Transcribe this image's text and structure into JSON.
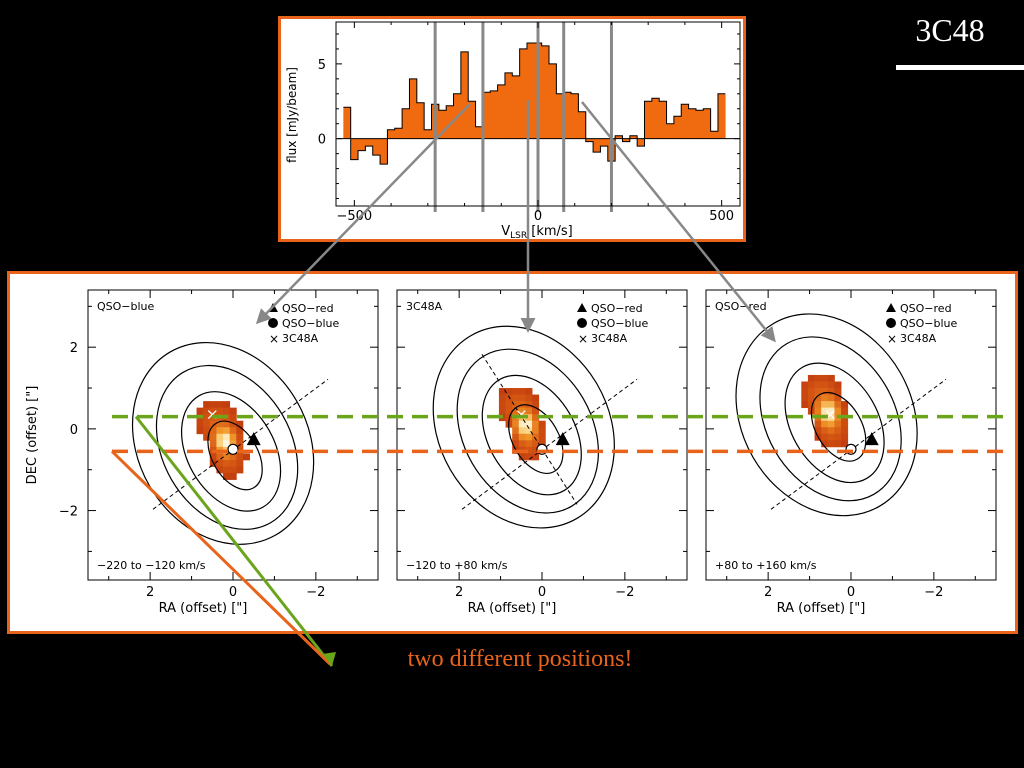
{
  "slide": {
    "title": "3C48",
    "caption": "two different positions!"
  },
  "colors": {
    "accent_orange": "#e8641b",
    "spectrum_fill": "#f06a10",
    "guide_gray": "#888888",
    "green_line": "#6aa51c",
    "orange_line": "#e8641b",
    "background": "#000000"
  },
  "chart_data": [
    {
      "type": "bar",
      "style": "step-histogram",
      "xlabel_main": "V",
      "xlabel_sub": "LSR",
      "xlabel_unit": "[km/s]",
      "ylabel": "flux  [mJy/beam]",
      "xlim": [
        -550,
        550
      ],
      "ylim": [
        -4.5,
        7.8
      ],
      "xticks": [
        -500,
        0,
        500
      ],
      "yticks": [
        0,
        5
      ],
      "channel_width": 20,
      "x": [
        -520,
        -500,
        -480,
        -460,
        -440,
        -420,
        -400,
        -380,
        -360,
        -340,
        -320,
        -300,
        -280,
        -260,
        -240,
        -220,
        -200,
        -180,
        -160,
        -140,
        -120,
        -100,
        -80,
        -60,
        -40,
        -20,
        0,
        20,
        40,
        60,
        80,
        100,
        120,
        140,
        160,
        180,
        200,
        220,
        240,
        260,
        280,
        300,
        320,
        340,
        360,
        380,
        400,
        420,
        440,
        460,
        480,
        500
      ],
      "values": [
        2.1,
        -1.4,
        -0.8,
        -0.5,
        -1.1,
        -1.7,
        0.6,
        0.7,
        2.0,
        4.0,
        2.4,
        0.6,
        2.3,
        1.9,
        2.2,
        3.0,
        5.8,
        2.5,
        0.8,
        3.1,
        3.2,
        3.6,
        4.4,
        4.2,
        6.0,
        6.4,
        6.4,
        6.2,
        5.0,
        3.0,
        3.1,
        3.0,
        1.8,
        -0.2,
        -0.9,
        -0.5,
        -1.5,
        0.2,
        -0.2,
        0.2,
        -0.5,
        2.5,
        2.7,
        2.5,
        1.0,
        1.5,
        2.3,
        2.0,
        1.9,
        2.0,
        0.5,
        3.0
      ],
      "velocity_guides": [
        -280,
        -150,
        0,
        70,
        200
      ]
    },
    {
      "type": "heatmap",
      "panel_label": "QSO−blue",
      "velocity_range": "−220 to −120 km/s",
      "xlabel": "RA  (offset) [\"]",
      "ylabel": "DEC  (offset) [\"]",
      "xlim": [
        3.5,
        -3.5
      ],
      "ylim": [
        -3.7,
        3.4
      ],
      "xticks": [
        2,
        0,
        -2
      ],
      "yticks": [
        2,
        0,
        -2
      ],
      "legend": [
        "QSO−red",
        "QSO−blue",
        "3C48A"
      ],
      "markers": {
        "qso_red": [
          -0.5,
          -0.25
        ],
        "qso_blue": [
          0.0,
          -0.5
        ],
        "3c48a": [
          0.5,
          0.35
        ]
      },
      "emission_peak": [
        0.2,
        -0.3
      ]
    },
    {
      "type": "heatmap",
      "panel_label": "3C48A",
      "velocity_range": "−120 to +80 km/s",
      "xlabel": "RA  (offset) [\"]",
      "xlim": [
        3.5,
        -3.5
      ],
      "ylim": [
        -3.7,
        3.4
      ],
      "xticks": [
        2,
        0,
        -2
      ],
      "yticks": [
        2,
        0,
        -2
      ],
      "legend": [
        "QSO−red",
        "QSO−blue",
        "3C48A"
      ],
      "markers": {
        "qso_red": [
          -0.5,
          -0.25
        ],
        "qso_blue": [
          0.0,
          -0.5
        ],
        "3c48a": [
          0.5,
          0.35
        ]
      },
      "emission_peak": [
        0.4,
        0.1
      ]
    },
    {
      "type": "heatmap",
      "panel_label": "QSO−red",
      "velocity_range": "+80 to +160 km/s",
      "xlabel": "RA  (offset) [\"]",
      "xlim": [
        3.5,
        -3.5
      ],
      "ylim": [
        -3.7,
        3.4
      ],
      "xticks": [
        2,
        0,
        -2
      ],
      "yticks": [
        2,
        0,
        -2
      ],
      "legend": [
        "QSO−red",
        "QSO−blue",
        "3C48A"
      ],
      "markers": {
        "qso_red": [
          -0.5,
          -0.25
        ],
        "qso_blue": [
          0.0,
          -0.5
        ],
        "3c48a": [
          0.5,
          0.35
        ]
      },
      "emission_peak": [
        0.55,
        0.4
      ]
    }
  ],
  "reference_lines": [
    {
      "name": "green",
      "dec": 0.3
    },
    {
      "name": "orange",
      "dec": -0.55
    }
  ]
}
